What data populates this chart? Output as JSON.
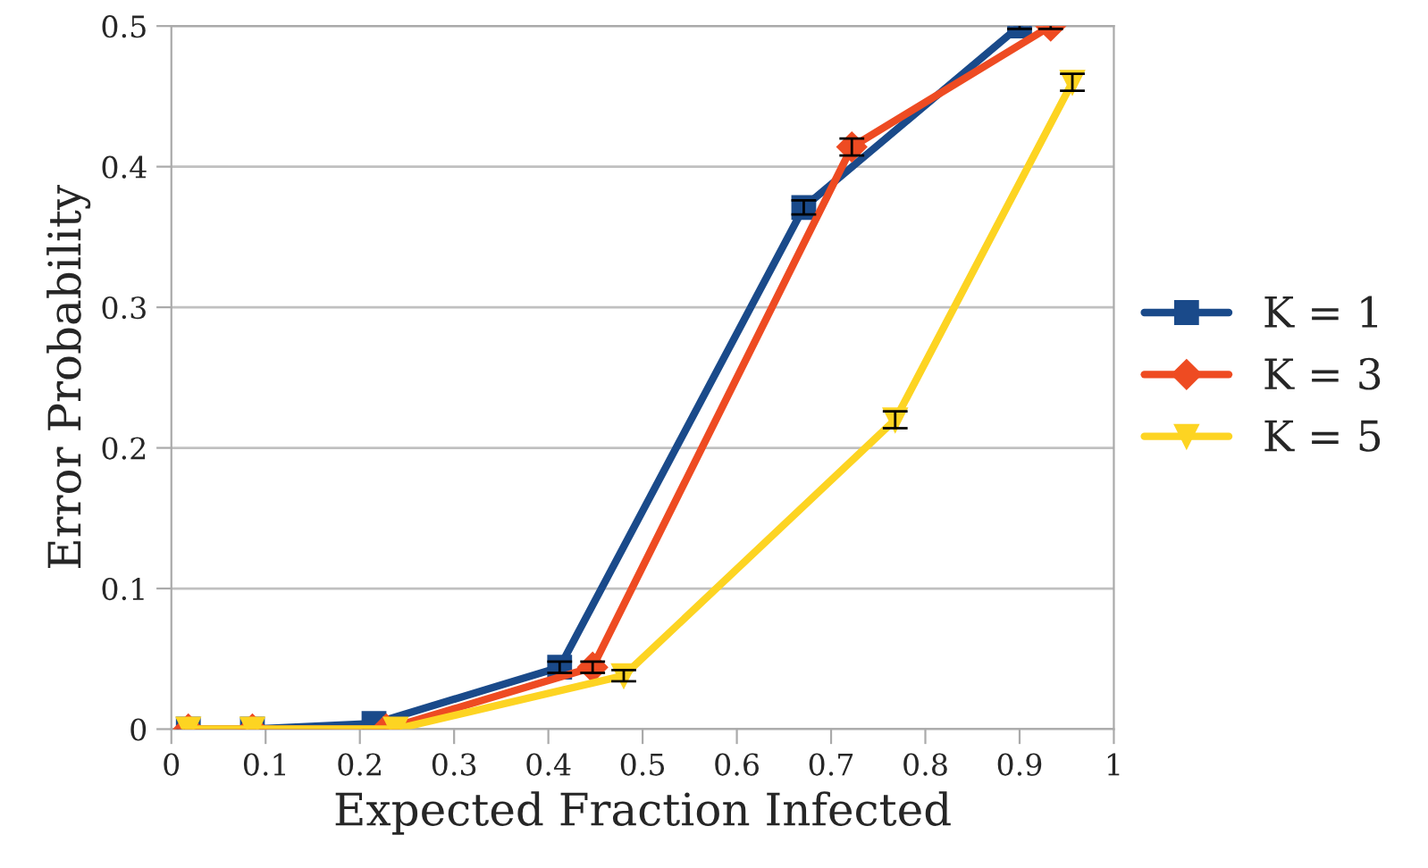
{
  "chart_data": {
    "type": "line",
    "xlabel": "Expected Fraction Infected",
    "ylabel": "Error Probability",
    "xlim": [
      0,
      1
    ],
    "xticks": [
      0,
      0.1,
      0.2,
      0.3,
      0.4,
      0.5,
      0.6,
      0.7,
      0.8,
      0.9,
      1
    ],
    "ylim": [
      0,
      0.5
    ],
    "yticks": [
      0,
      0.1,
      0.2,
      0.3,
      0.4,
      0.5
    ],
    "grid": "y",
    "legend": "right",
    "series": [
      {
        "name": "K = 1",
        "color": "#1a4a8a",
        "marker": "square",
        "x": [
          0.018,
          0.086,
          0.215,
          0.412,
          0.671,
          0.9
        ],
        "values": [
          0,
          0,
          0.004,
          0.044,
          0.371,
          0.5
        ],
        "errors": [
          null,
          null,
          null,
          0.004,
          0.005,
          0.002
        ]
      },
      {
        "name": "K = 3",
        "color": "#ee4b22",
        "marker": "diamond",
        "x": [
          0.018,
          0.086,
          0.228,
          0.447,
          0.722,
          0.933
        ],
        "values": [
          0,
          0,
          0,
          0.044,
          0.414,
          0.5
        ],
        "errors": [
          null,
          null,
          null,
          0.004,
          0.006,
          0.002
        ]
      },
      {
        "name": "K = 5",
        "color": "#fdd422",
        "marker": "triangle",
        "x": [
          0.018,
          0.086,
          0.238,
          0.48,
          0.768,
          0.956
        ],
        "values": [
          0,
          0,
          0,
          0.038,
          0.22,
          0.46
        ],
        "errors": [
          null,
          null,
          null,
          0.004,
          0.006,
          0.006
        ]
      }
    ]
  }
}
